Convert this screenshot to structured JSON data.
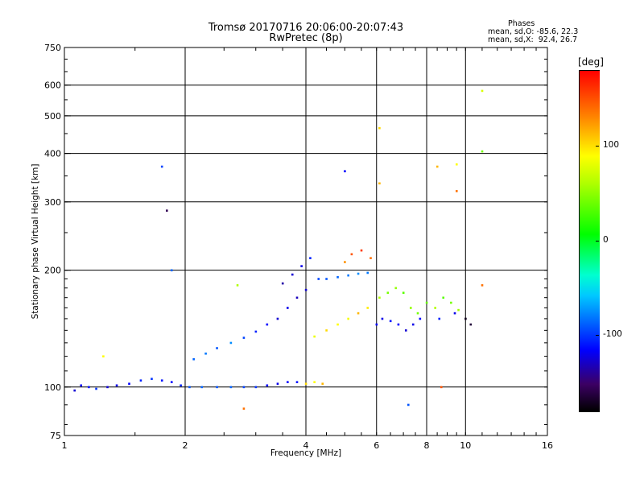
{
  "chart_data": {
    "type": "scatter",
    "title": "Tromsø 20170716 20:06:00-20:07:43",
    "subtitle": "RwPretec (8p)",
    "annotation": {
      "line1": "Phases",
      "line2": "mean, sd,O: -85.6, 22.3",
      "line3": "mean, sd,X:  92.4, 26.7"
    },
    "xlabel": "Frequency [MHz]",
    "ylabel": "Stationary phase Virtual Height [km]",
    "x_scale": "log",
    "y_scale": "log",
    "xlim": [
      1,
      16
    ],
    "ylim": [
      75,
      750
    ],
    "x_ticks": [
      "1",
      "2",
      "4",
      "6",
      "8",
      "10",
      "16"
    ],
    "x_tick_values": [
      1,
      2,
      4,
      6,
      8,
      10,
      16
    ],
    "y_ticks": [
      "75",
      "100",
      "200",
      "300",
      "400",
      "500",
      "600",
      "750"
    ],
    "y_tick_values": [
      75,
      100,
      200,
      300,
      400,
      500,
      600,
      750
    ],
    "grid_x": [
      2,
      4,
      6,
      8,
      10
    ],
    "grid_y": [
      100,
      200,
      300,
      400,
      500,
      600
    ],
    "colorbar": {
      "unit": "[deg]",
      "ticks": [
        "100",
        "0",
        "-100"
      ],
      "tick_values": [
        100,
        0,
        -100
      ],
      "range": [
        -180,
        180
      ]
    },
    "series": [
      {
        "points": [
          [
            1.06,
            98,
            -120
          ],
          [
            1.1,
            101,
            -110
          ],
          [
            1.15,
            100,
            -105
          ],
          [
            1.2,
            99,
            -95
          ],
          [
            1.28,
            100,
            -120
          ],
          [
            1.35,
            101,
            -115
          ],
          [
            1.45,
            102,
            -110
          ],
          [
            1.55,
            104,
            -100
          ],
          [
            1.65,
            105,
            -95
          ],
          [
            1.75,
            104,
            -105
          ],
          [
            1.85,
            103,
            -110
          ],
          [
            1.95,
            101,
            -100
          ],
          [
            2.05,
            100,
            -85
          ],
          [
            2.2,
            100,
            -80
          ],
          [
            2.4,
            100,
            -85
          ],
          [
            2.6,
            100,
            -80
          ],
          [
            2.8,
            100,
            -90
          ],
          [
            3.0,
            100,
            -95
          ],
          [
            3.2,
            101,
            -110
          ],
          [
            3.4,
            102,
            -115
          ],
          [
            3.6,
            103,
            -110
          ],
          [
            3.8,
            103,
            -105
          ],
          [
            4.0,
            102,
            110
          ],
          [
            4.2,
            103,
            100
          ],
          [
            4.4,
            102,
            120
          ],
          [
            2.1,
            118,
            -80
          ],
          [
            2.25,
            122,
            -75
          ],
          [
            2.4,
            126,
            -85
          ],
          [
            2.6,
            130,
            -70
          ],
          [
            2.8,
            134,
            -90
          ],
          [
            3.0,
            139,
            -100
          ],
          [
            3.2,
            145,
            -110
          ],
          [
            3.4,
            150,
            -120
          ],
          [
            3.6,
            160,
            -115
          ],
          [
            3.8,
            170,
            -125
          ],
          [
            4.0,
            178,
            -120
          ],
          [
            3.5,
            185,
            -130
          ],
          [
            3.7,
            195,
            -120
          ],
          [
            3.9,
            205,
            -115
          ],
          [
            4.1,
            215,
            -100
          ],
          [
            4.3,
            190,
            -90
          ],
          [
            4.5,
            190,
            -85
          ],
          [
            4.8,
            192,
            -80
          ],
          [
            5.1,
            194,
            -75
          ],
          [
            5.4,
            196,
            -70
          ],
          [
            5.7,
            197,
            -75
          ],
          [
            4.2,
            135,
            90
          ],
          [
            4.5,
            140,
            110
          ],
          [
            4.8,
            145,
            100
          ],
          [
            5.1,
            150,
            95
          ],
          [
            5.4,
            155,
            120
          ],
          [
            5.7,
            160,
            105
          ],
          [
            6.0,
            145,
            -110
          ],
          [
            6.2,
            150,
            -115
          ],
          [
            6.5,
            148,
            -105
          ],
          [
            6.8,
            145,
            -110
          ],
          [
            7.1,
            140,
            -120
          ],
          [
            7.4,
            145,
            -115
          ],
          [
            7.7,
            150,
            -110
          ],
          [
            5.0,
            210,
            130
          ],
          [
            5.2,
            220,
            150
          ],
          [
            5.5,
            225,
            160
          ],
          [
            5.8,
            215,
            140
          ],
          [
            6.1,
            170,
            60
          ],
          [
            6.4,
            175,
            40
          ],
          [
            6.7,
            180,
            50
          ],
          [
            7.0,
            175,
            30
          ],
          [
            7.3,
            160,
            50
          ],
          [
            7.6,
            155,
            40
          ],
          [
            8.0,
            165,
            35
          ],
          [
            8.4,
            160,
            60
          ],
          [
            8.8,
            170,
            30
          ],
          [
            9.2,
            165,
            40
          ],
          [
            9.6,
            158,
            55
          ],
          [
            10.0,
            150,
            -170
          ],
          [
            10.3,
            145,
            -160
          ],
          [
            8.6,
            150,
            -100
          ],
          [
            9.4,
            155,
            -115
          ],
          [
            1.25,
            120,
            100
          ],
          [
            1.75,
            370,
            -90
          ],
          [
            1.8,
            285,
            -150
          ],
          [
            1.85,
            200,
            -80
          ],
          [
            2.7,
            183,
            60
          ],
          [
            2.8,
            88,
            140
          ],
          [
            5.0,
            360,
            -110
          ],
          [
            6.1,
            465,
            110
          ],
          [
            6.1,
            335,
            120
          ],
          [
            7.2,
            90,
            -85
          ],
          [
            9.5,
            375,
            100
          ],
          [
            9.5,
            320,
            140
          ],
          [
            11.0,
            580,
            80
          ],
          [
            11.0,
            405,
            40
          ],
          [
            11.0,
            183,
            140
          ],
          [
            8.7,
            100,
            150
          ],
          [
            8.5,
            370,
            120
          ]
        ]
      }
    ]
  }
}
